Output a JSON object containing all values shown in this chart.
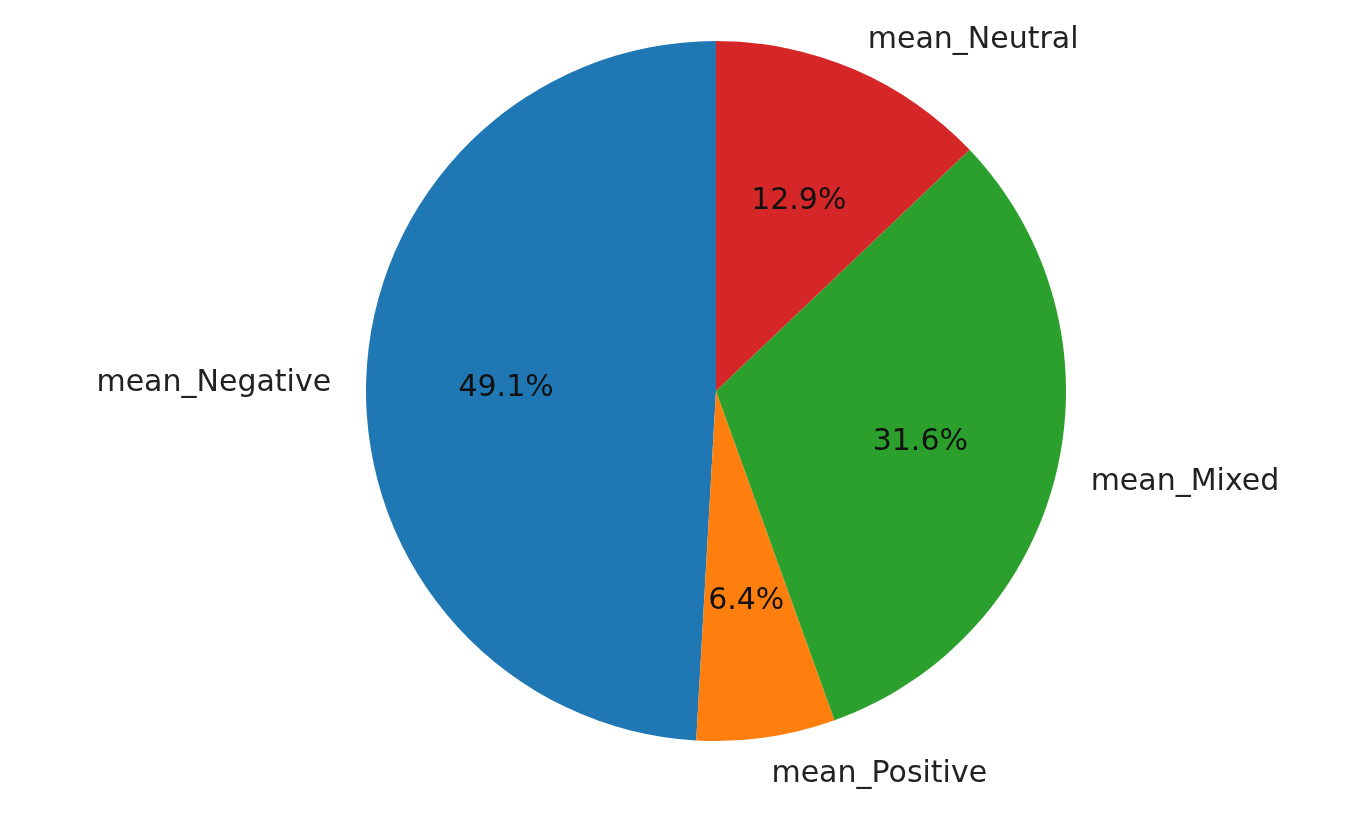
{
  "chart_data": {
    "type": "pie",
    "categories": [
      "mean_Negative",
      "mean_Positive",
      "mean_Mixed",
      "mean_Neutral"
    ],
    "values": [
      49.1,
      6.4,
      31.6,
      12.9
    ],
    "colors": [
      "#1f77b4",
      "#ff7f0e",
      "#2ca02c",
      "#d62728"
    ],
    "value_labels": [
      "49.1%",
      "6.4%",
      "31.6%",
      "12.9%"
    ]
  }
}
